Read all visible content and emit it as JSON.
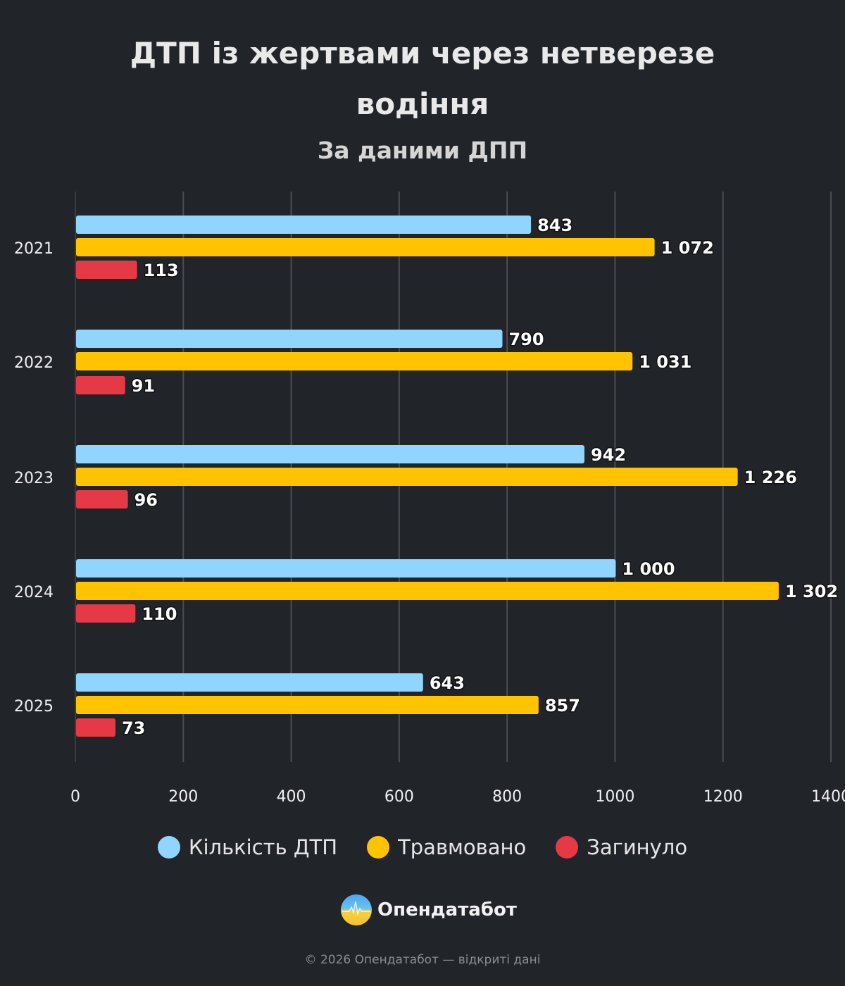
{
  "chart_data": {
    "type": "bar",
    "orientation": "horizontal",
    "title": "ДТП із жертвами через нетверезе водіння",
    "subtitle": "За даними ДПП",
    "categories": [
      "2021",
      "2022",
      "2023",
      "2024",
      "2025"
    ],
    "series": [
      {
        "name": "Кількість ДТП",
        "color": "#8fd5ff",
        "values": [
          843,
          790,
          942,
          1000,
          643
        ],
        "labels": [
          "843",
          "790",
          "942",
          "1 000",
          "643"
        ]
      },
      {
        "name": "Травмовано",
        "color": "#ffc300",
        "values": [
          1072,
          1031,
          1226,
          1302,
          857
        ],
        "labels": [
          "1 072",
          "1 031",
          "1 226",
          "1 302",
          "857"
        ]
      },
      {
        "name": "Загинуло",
        "color": "#e63946",
        "values": [
          113,
          91,
          96,
          110,
          73
        ],
        "labels": [
          "113",
          "91",
          "96",
          "110",
          "73"
        ]
      }
    ],
    "xlim": [
      0,
      1400
    ],
    "xticks": [
      "0",
      "200",
      "400",
      "600",
      "800",
      "1000",
      "1200",
      "1400"
    ],
    "grid": true,
    "legend": "bottom"
  },
  "brand": {
    "name": "Опендатабот"
  },
  "footer": "© 2026 Опендатабот — відкриті дані"
}
